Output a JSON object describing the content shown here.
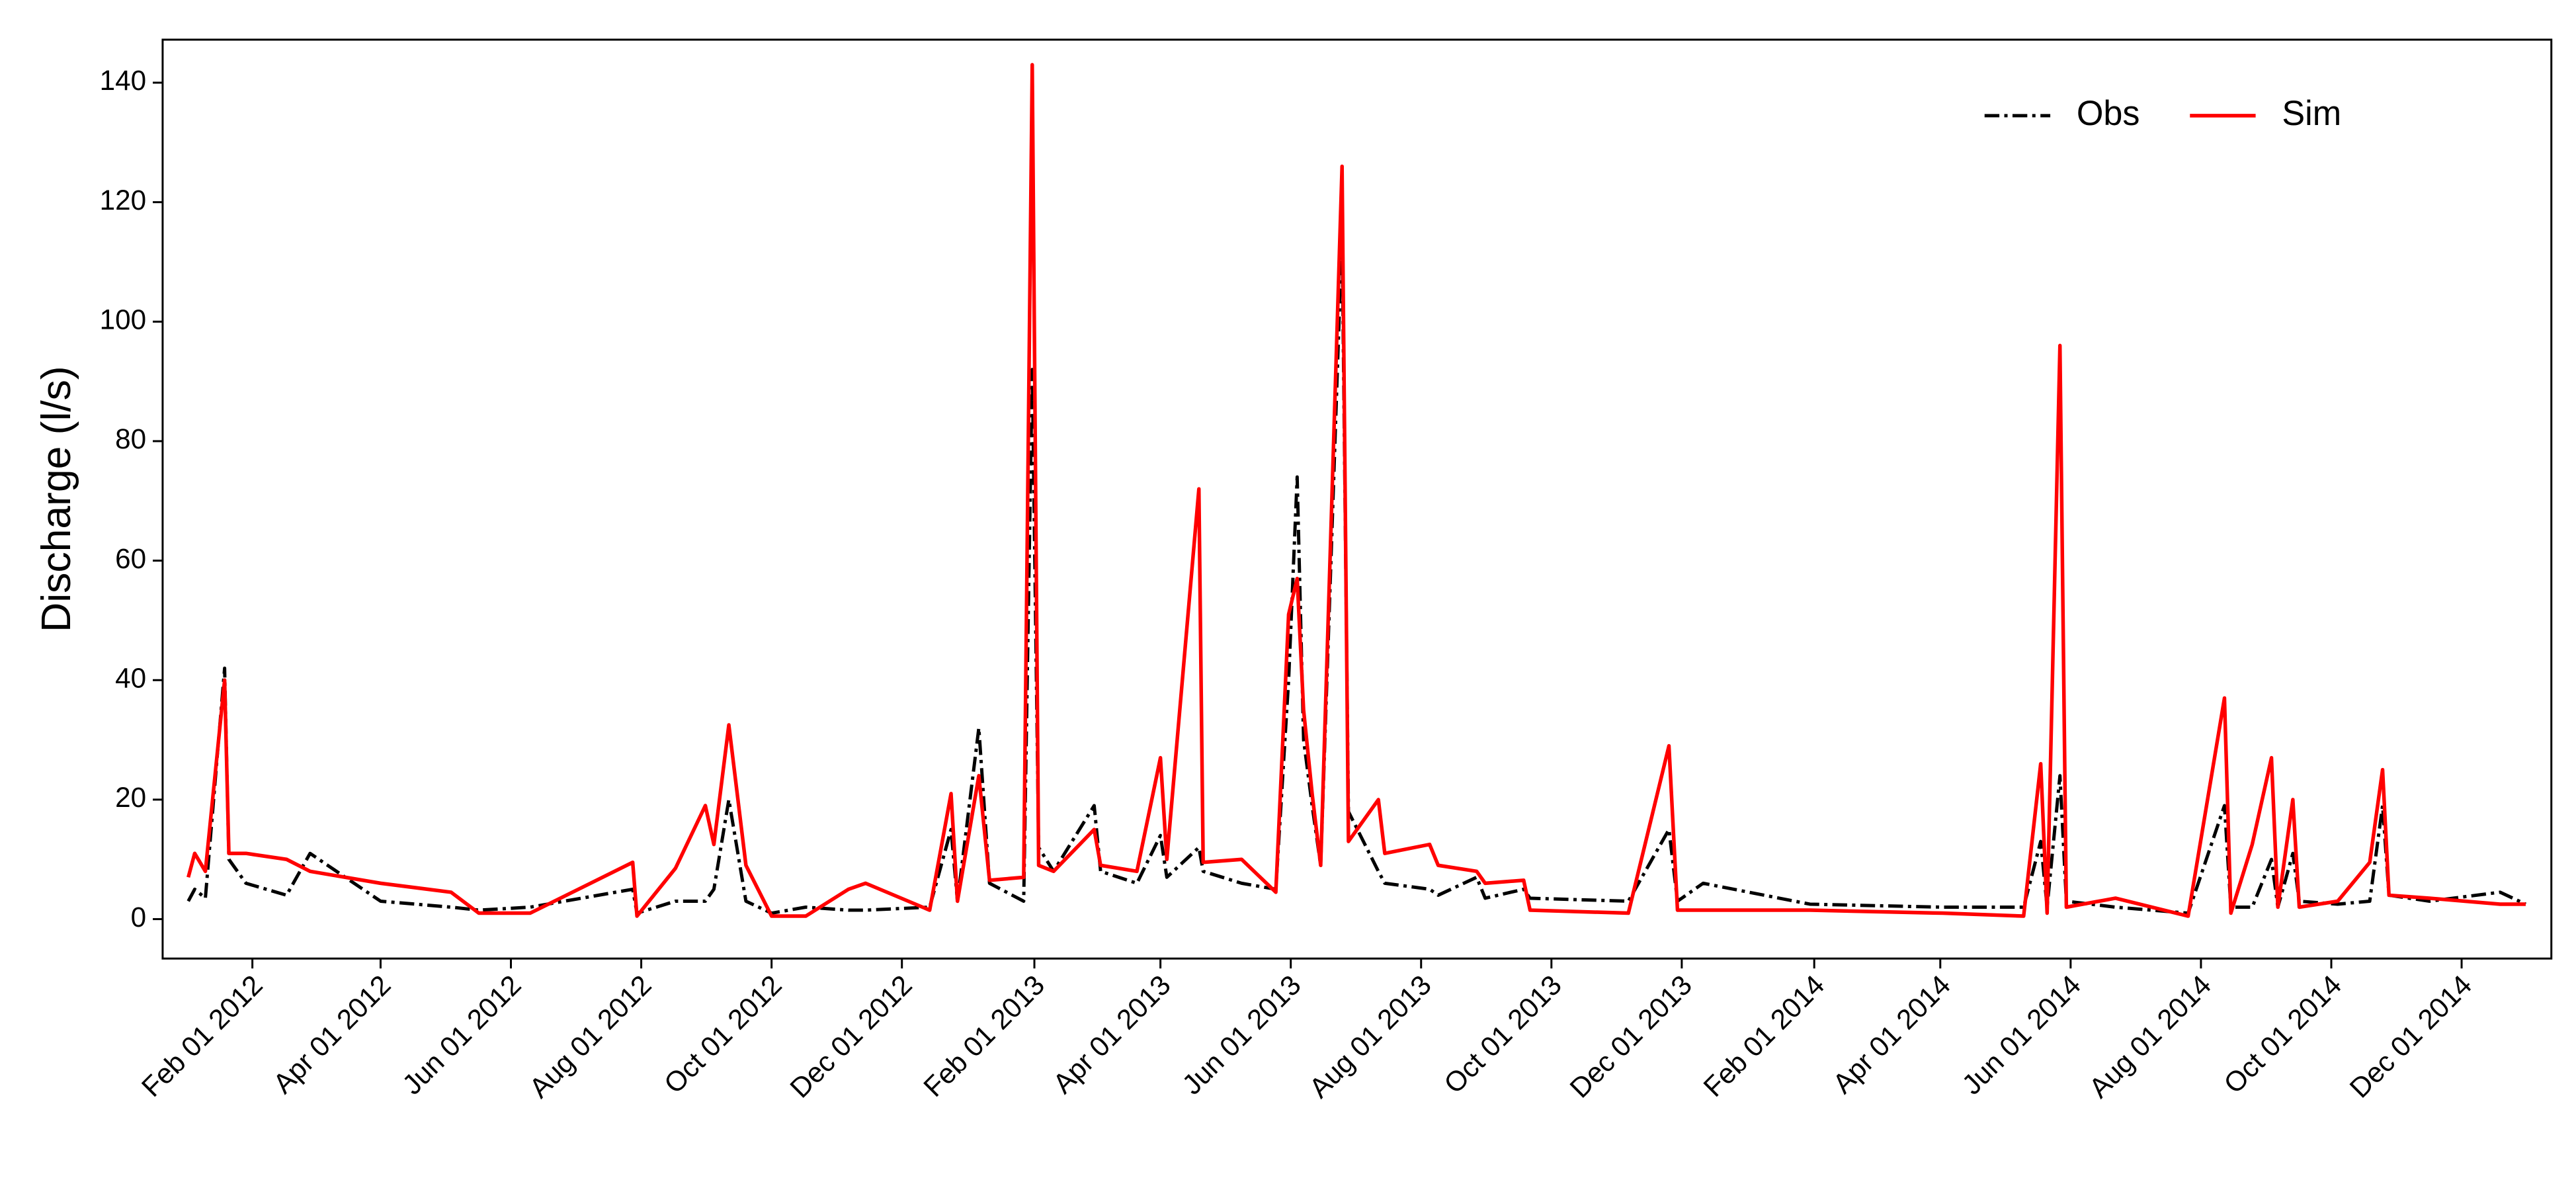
{
  "chart_data": {
    "type": "line",
    "y_label": "Discharge (l/s)",
    "legend": "upper right",
    "xlim": [
      "2011-12-21",
      "2015-01-12"
    ],
    "ylim": [
      -6.6,
      147.2
    ],
    "yticks": [
      0,
      20,
      40,
      60,
      80,
      100,
      120,
      140
    ],
    "xticks": [
      {
        "value": "2012-02-01",
        "label": "Feb 01 2012"
      },
      {
        "value": "2012-04-01",
        "label": "Apr 01 2012"
      },
      {
        "value": "2012-06-01",
        "label": "Jun 01 2012"
      },
      {
        "value": "2012-08-01",
        "label": "Aug 01 2012"
      },
      {
        "value": "2012-10-01",
        "label": "Oct 01 2012"
      },
      {
        "value": "2012-12-01",
        "label": "Dec 01 2012"
      },
      {
        "value": "2013-02-01",
        "label": "Feb 01 2013"
      },
      {
        "value": "2013-04-01",
        "label": "Apr 01 2013"
      },
      {
        "value": "2013-06-01",
        "label": "Jun 01 2013"
      },
      {
        "value": "2013-08-01",
        "label": "Aug 01 2013"
      },
      {
        "value": "2013-10-01",
        "label": "Oct 01 2013"
      },
      {
        "value": "2013-12-01",
        "label": "Dec 01 2013"
      },
      {
        "value": "2014-02-01",
        "label": "Feb 01 2014"
      },
      {
        "value": "2014-04-01",
        "label": "Apr 01 2014"
      },
      {
        "value": "2014-06-01",
        "label": "Jun 01 2014"
      },
      {
        "value": "2014-08-01",
        "label": "Aug 01 2014"
      },
      {
        "value": "2014-10-01",
        "label": "Oct 01 2014"
      },
      {
        "value": "2014-12-01",
        "label": "Dec 01 2014"
      }
    ],
    "x": [
      "2012-01-02",
      "2012-01-05",
      "2012-01-10",
      "2012-01-19",
      "2012-01-21",
      "2012-01-29",
      "2012-02-17",
      "2012-02-28",
      "2012-04-01",
      "2012-05-04",
      "2012-05-17",
      "2012-06-10",
      "2012-07-28",
      "2012-07-30",
      "2012-08-17",
      "2012-08-31",
      "2012-09-04",
      "2012-09-11",
      "2012-09-19",
      "2012-10-01",
      "2012-10-17",
      "2012-11-06",
      "2012-11-14",
      "2012-12-14",
      "2012-12-24",
      "2012-12-27",
      "2013-01-06",
      "2013-01-11",
      "2013-01-27",
      "2013-01-31",
      "2013-02-03",
      "2013-02-10",
      "2013-03-01",
      "2013-03-04",
      "2013-03-21",
      "2013-04-01",
      "2013-04-04",
      "2013-04-19",
      "2013-04-21",
      "2013-05-09",
      "2013-05-25",
      "2013-05-31",
      "2013-06-04",
      "2013-06-07",
      "2013-06-11",
      "2013-06-15",
      "2013-06-25",
      "2013-06-28",
      "2013-07-12",
      "2013-07-15",
      "2013-08-05",
      "2013-08-09",
      "2013-08-27",
      "2013-08-31",
      "2013-09-18",
      "2013-09-21",
      "2013-11-06",
      "2013-11-25",
      "2013-11-29",
      "2013-12-11",
      "2014-01-30",
      "2014-04-02",
      "2014-05-10",
      "2014-05-18",
      "2014-05-21",
      "2014-05-27",
      "2014-05-30",
      "2014-06-22",
      "2014-07-26",
      "2014-08-12",
      "2014-08-15",
      "2014-08-25",
      "2014-09-03",
      "2014-09-06",
      "2014-09-13",
      "2014-09-16",
      "2014-10-04",
      "2014-10-19",
      "2014-10-25",
      "2014-10-28",
      "2014-11-16",
      "2014-12-19",
      "2014-12-31"
    ],
    "series": [
      {
        "name": "Obs",
        "color": "#000000",
        "dash": true,
        "values": [
          3,
          5,
          3.5,
          42,
          10,
          6,
          4,
          11,
          3,
          2,
          1.5,
          2,
          5,
          1,
          3,
          3,
          5,
          20,
          3,
          1,
          2,
          1.5,
          1.5,
          2,
          15,
          3,
          32,
          6,
          3,
          92,
          12,
          8,
          19,
          8,
          6,
          14,
          7,
          12,
          8,
          6,
          5,
          40,
          74,
          30,
          19,
          9,
          115,
          18,
          8,
          6,
          5,
          4,
          7,
          3.5,
          5,
          3.5,
          3,
          15,
          3,
          6,
          2.5,
          2,
          2,
          13,
          2,
          24,
          3,
          2,
          1,
          19,
          2,
          2,
          10,
          2,
          11,
          3,
          2.5,
          3,
          19,
          4,
          3,
          4.5,
          2.5
        ]
      },
      {
        "name": "Sim",
        "color": "#ff0000",
        "dash": false,
        "values": [
          7,
          11,
          8,
          40,
          11,
          11,
          10,
          8,
          6,
          4.5,
          1,
          1,
          9.5,
          0.5,
          8.5,
          19,
          12.5,
          32.5,
          9,
          0.5,
          0.5,
          5,
          6,
          1.5,
          21,
          3,
          24,
          6.5,
          7,
          143,
          9,
          8,
          15,
          9,
          8,
          27,
          10,
          72,
          9.5,
          10,
          4.5,
          51,
          57,
          35,
          21,
          9,
          126,
          13,
          20,
          11,
          12.5,
          9,
          8,
          6,
          6.5,
          1.5,
          1,
          29,
          1.5,
          1.5,
          1.5,
          1,
          0.5,
          26,
          1,
          96,
          2,
          3.5,
          0.5,
          37,
          1,
          12.5,
          27,
          2,
          20,
          2,
          3,
          9.5,
          25,
          4,
          3.5,
          2.5,
          2.5
        ]
      }
    ]
  }
}
